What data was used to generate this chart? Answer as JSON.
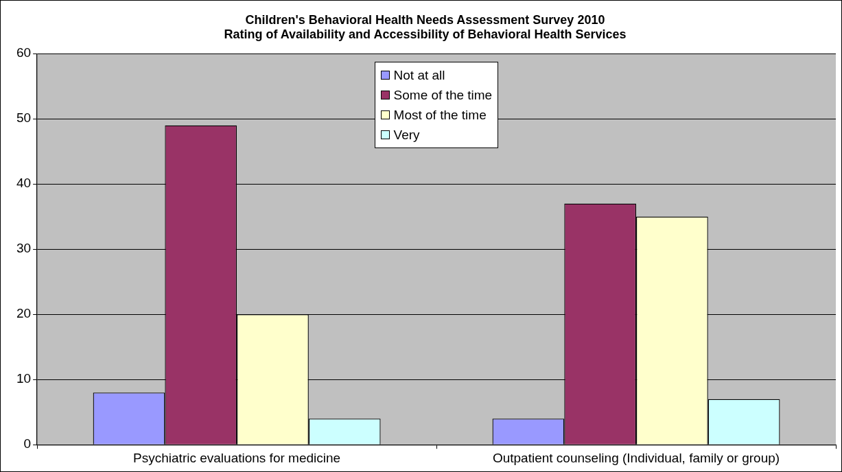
{
  "chart_data": {
    "type": "bar",
    "title": "Children's Behavioral Health Needs Assessment Survey 2010",
    "subtitle": "Rating of Availability and Accessibility of Behavioral Health Services",
    "categories": [
      "Psychiatric evaluations for medicine",
      "Outpatient counseling (Individual, family or group)"
    ],
    "series": [
      {
        "name": "Not at all",
        "color": "#9999ff",
        "values": [
          8,
          4
        ]
      },
      {
        "name": "Some of the time",
        "color": "#993366",
        "values": [
          49,
          37
        ]
      },
      {
        "name": "Most of the time",
        "color": "#ffffcc",
        "values": [
          20,
          35
        ]
      },
      {
        "name": "Very",
        "color": "#ccffff",
        "values": [
          4,
          7
        ]
      }
    ],
    "ylim": [
      0,
      60
    ],
    "yticks": [
      0,
      10,
      20,
      30,
      40,
      50,
      60
    ],
    "grid": "y",
    "legend": "top"
  }
}
